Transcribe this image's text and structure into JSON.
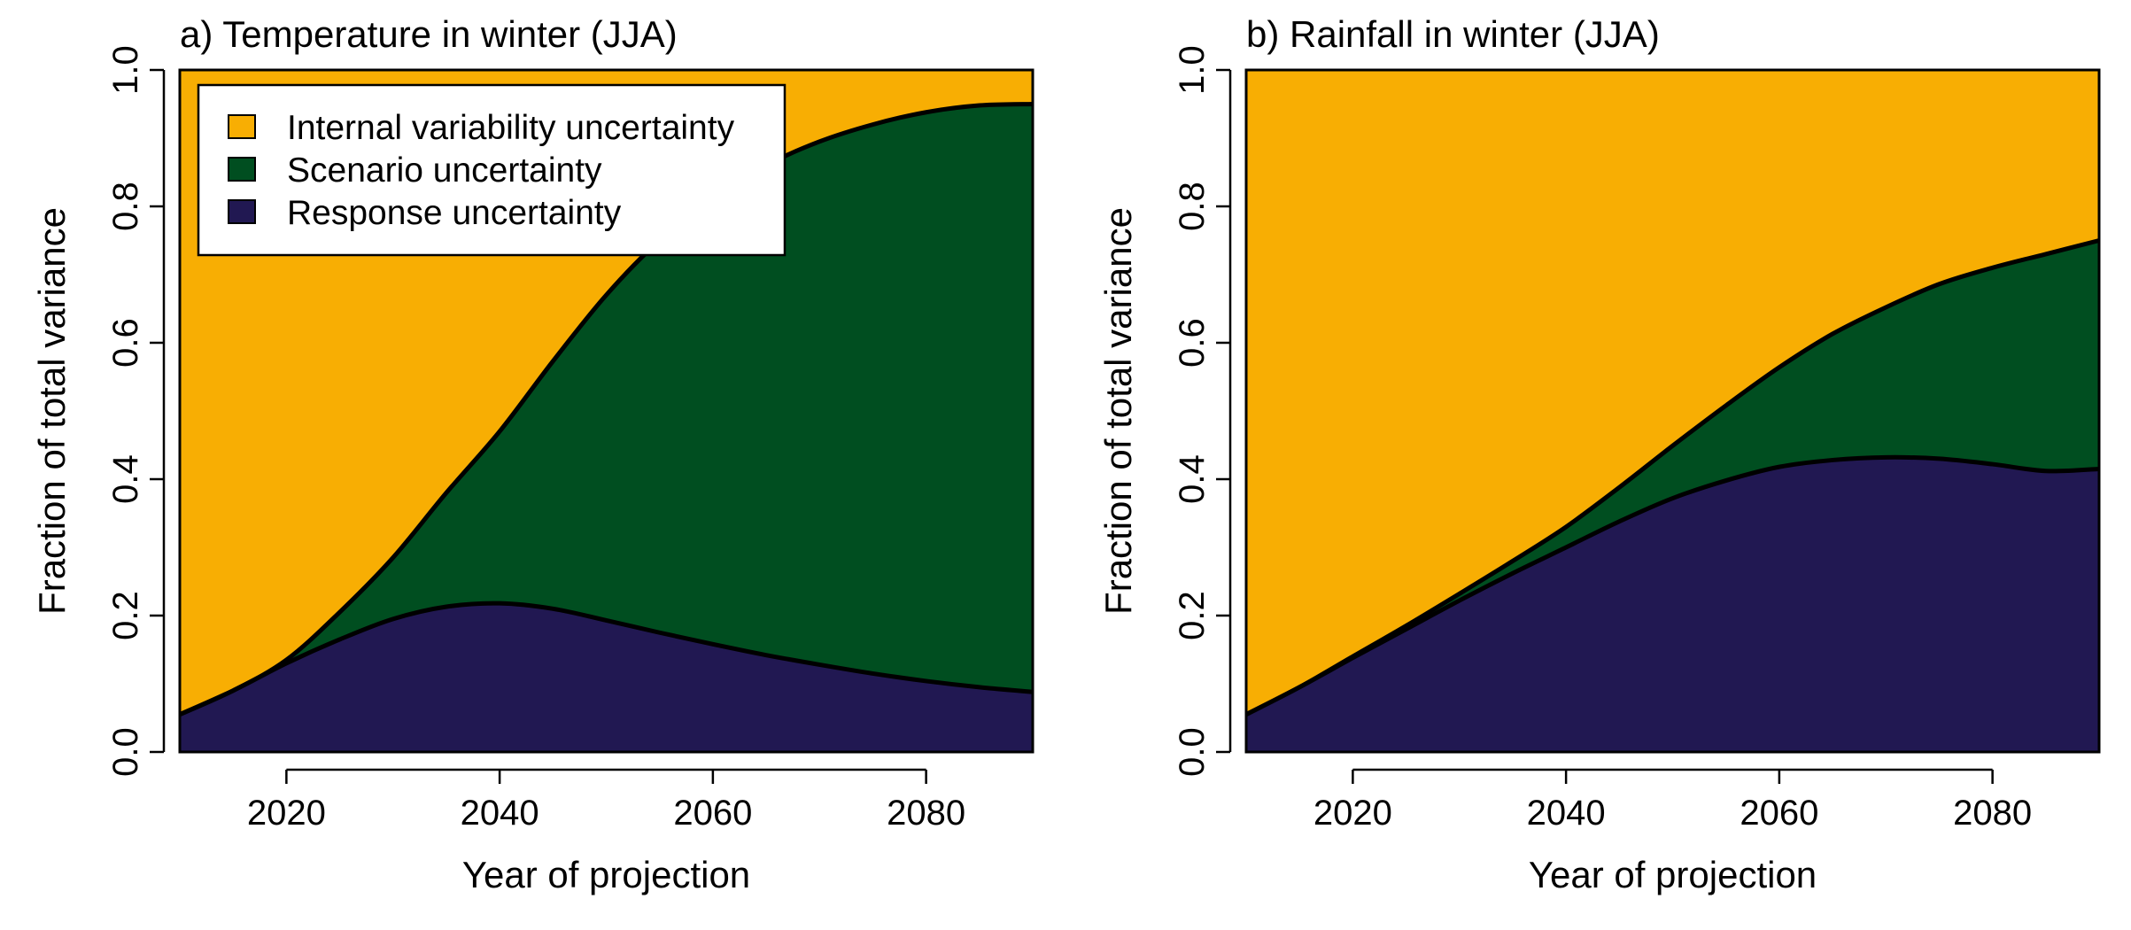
{
  "colors": {
    "internal": "#F8AE03",
    "scenario": "#004E20",
    "response": "#211852"
  },
  "legend": {
    "items": [
      {
        "label": "Internal variability uncertainty",
        "color_key": "internal"
      },
      {
        "label": "Scenario uncertainty",
        "color_key": "scenario"
      },
      {
        "label": "Response uncertainty",
        "color_key": "response"
      }
    ]
  },
  "chart_data": [
    {
      "type": "area",
      "stacked": true,
      "title": "a) Temperature in winter (JJA)",
      "xlabel": "Year of projection",
      "ylabel": "Fraction of total variance",
      "xlim": [
        2010,
        2090
      ],
      "ylim": [
        0,
        1
      ],
      "xticks": [
        2020,
        2040,
        2060,
        2080
      ],
      "yticks": [
        "0.0",
        "0.2",
        "0.4",
        "0.6",
        "0.8",
        "1.0"
      ],
      "legend_position": "top-left",
      "x": [
        2010,
        2015,
        2020,
        2025,
        2030,
        2035,
        2040,
        2045,
        2050,
        2055,
        2060,
        2065,
        2070,
        2075,
        2080,
        2085,
        2090
      ],
      "series": [
        {
          "name": "Response uncertainty",
          "values": [
            0.055,
            0.09,
            0.13,
            0.165,
            0.195,
            0.213,
            0.218,
            0.21,
            0.193,
            0.175,
            0.158,
            0.142,
            0.128,
            0.115,
            0.104,
            0.095,
            0.088
          ]
        },
        {
          "name": "Scenario uncertainty",
          "values": [
            0.0,
            0.0,
            0.005,
            0.04,
            0.09,
            0.167,
            0.252,
            0.363,
            0.477,
            0.575,
            0.652,
            0.718,
            0.767,
            0.805,
            0.834,
            0.853,
            0.862
          ]
        },
        {
          "name": "Internal variability uncertainty",
          "values": [
            0.945,
            0.91,
            0.865,
            0.795,
            0.715,
            0.62,
            0.53,
            0.427,
            0.33,
            0.25,
            0.19,
            0.14,
            0.105,
            0.08,
            0.062,
            0.052,
            0.05
          ]
        }
      ]
    },
    {
      "type": "area",
      "stacked": true,
      "title": "b) Rainfall in winter (JJA)",
      "xlabel": "Year of projection",
      "ylabel": "Fraction of total variance",
      "xlim": [
        2010,
        2090
      ],
      "ylim": [
        0,
        1
      ],
      "xticks": [
        2020,
        2040,
        2060,
        2080
      ],
      "yticks": [
        "0.0",
        "0.2",
        "0.4",
        "0.6",
        "0.8",
        "1.0"
      ],
      "x": [
        2010,
        2015,
        2020,
        2025,
        2030,
        2035,
        2040,
        2045,
        2050,
        2055,
        2060,
        2065,
        2070,
        2075,
        2080,
        2085,
        2090
      ],
      "series": [
        {
          "name": "Response uncertainty",
          "values": [
            0.055,
            0.095,
            0.138,
            0.18,
            0.222,
            0.262,
            0.3,
            0.338,
            0.372,
            0.398,
            0.418,
            0.428,
            0.432,
            0.43,
            0.422,
            0.412,
            0.415
          ]
        },
        {
          "name": "Scenario uncertainty",
          "values": [
            0.0,
            0.0,
            0.002,
            0.005,
            0.01,
            0.018,
            0.03,
            0.05,
            0.077,
            0.11,
            0.146,
            0.185,
            0.22,
            0.256,
            0.288,
            0.318,
            0.335
          ]
        },
        {
          "name": "Internal variability uncertainty",
          "values": [
            0.945,
            0.905,
            0.86,
            0.815,
            0.768,
            0.72,
            0.67,
            0.612,
            0.551,
            0.492,
            0.436,
            0.387,
            0.348,
            0.314,
            0.29,
            0.27,
            0.25
          ]
        }
      ]
    }
  ]
}
